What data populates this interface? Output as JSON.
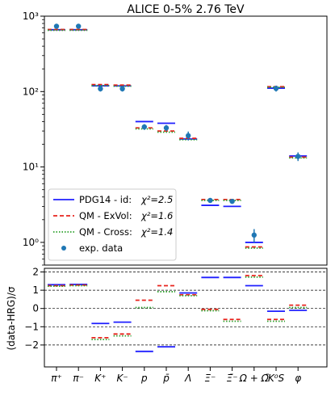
{
  "chart_data": [
    {
      "type": "scatter",
      "title": "ALICE 0-5% 2.76 TeV",
      "yscale": "log",
      "ylim": [
        0.5,
        1000
      ],
      "categories": [
        "π⁺",
        "π⁻",
        "K⁺",
        "K⁻",
        "p",
        "p̄",
        "Λ",
        "Ξ⁻",
        "Ξ̄⁻",
        "Ω + Ω̄",
        "K⁰S",
        "φ"
      ],
      "y_ticks": [
        {
          "value": 1,
          "label": "10⁰"
        },
        {
          "value": 10,
          "label": "10¹"
        },
        {
          "value": 100,
          "label": "10²"
        },
        {
          "value": 1000,
          "label": "10³"
        }
      ],
      "series": [
        {
          "name": "PDG14 - id:",
          "chi2": "χ²=2.5",
          "style": "solid",
          "color": "#1f1fff",
          "values": [
            660,
            660,
            119,
            119,
            40,
            38,
            23.5,
            3.1,
            3.0,
            1.0,
            111,
            14
          ]
        },
        {
          "name": "QM - ExVol:",
          "chi2": "χ²=1.6",
          "style": "dashed",
          "color": "#e8231c",
          "values": [
            665,
            665,
            124,
            122,
            33,
            30,
            24,
            3.7,
            3.7,
            0.87,
            116,
            13.5
          ]
        },
        {
          "name": "QM - Cross:",
          "chi2": "χ²=1.4",
          "style": "dotted",
          "color": "#2ca02c",
          "values": [
            650,
            650,
            120,
            118,
            32,
            29,
            23,
            3.6,
            3.6,
            0.84,
            114,
            13.2
          ]
        },
        {
          "name": "exp. data",
          "style": "marker",
          "color": "#1f77b4",
          "values": [
            735,
            735,
            109,
            109,
            34,
            33,
            26,
            3.6,
            3.5,
            1.25,
            110,
            13.8
          ],
          "errors": [
            0,
            0,
            9,
            9,
            3,
            3,
            3.5,
            0.25,
            0.25,
            0.25,
            10,
            1.8
          ]
        }
      ]
    },
    {
      "type": "bar",
      "ylabel": "(data-HRG)/σ",
      "ylim": [
        -3.2,
        2.2
      ],
      "y_ticks": [
        -2,
        -1,
        0,
        1,
        2
      ],
      "categories": [
        "π⁺",
        "π⁻",
        "K⁺",
        "K⁻",
        "p",
        "p̄",
        "Λ",
        "Ξ⁻",
        "Ξ̄⁻",
        "Ω + Ω̄",
        "K⁰S",
        "φ"
      ],
      "series": [
        {
          "name": "PDG14 - id",
          "style": "solid",
          "color": "#1f1fff",
          "values": [
            1.3,
            1.32,
            -0.82,
            -0.75,
            -2.35,
            -2.1,
            0.85,
            1.7,
            1.7,
            1.25,
            -0.15,
            -0.1
          ]
        },
        {
          "name": "QM - ExVol",
          "style": "dashed",
          "color": "#e8231c",
          "values": [
            1.25,
            1.28,
            -1.6,
            -1.4,
            0.45,
            1.25,
            0.75,
            -0.05,
            -0.6,
            1.8,
            -0.6,
            0.18
          ]
        },
        {
          "name": "QM - Cross",
          "style": "dotted",
          "color": "#2ca02c",
          "values": [
            1.22,
            1.25,
            -1.7,
            -1.5,
            0.05,
            0.92,
            0.7,
            -0.12,
            -0.7,
            1.72,
            -0.7,
            0.05
          ]
        }
      ],
      "reference_lines": [
        -2,
        -1,
        0,
        1,
        2
      ],
      "grid": "horizontal dashed"
    }
  ]
}
